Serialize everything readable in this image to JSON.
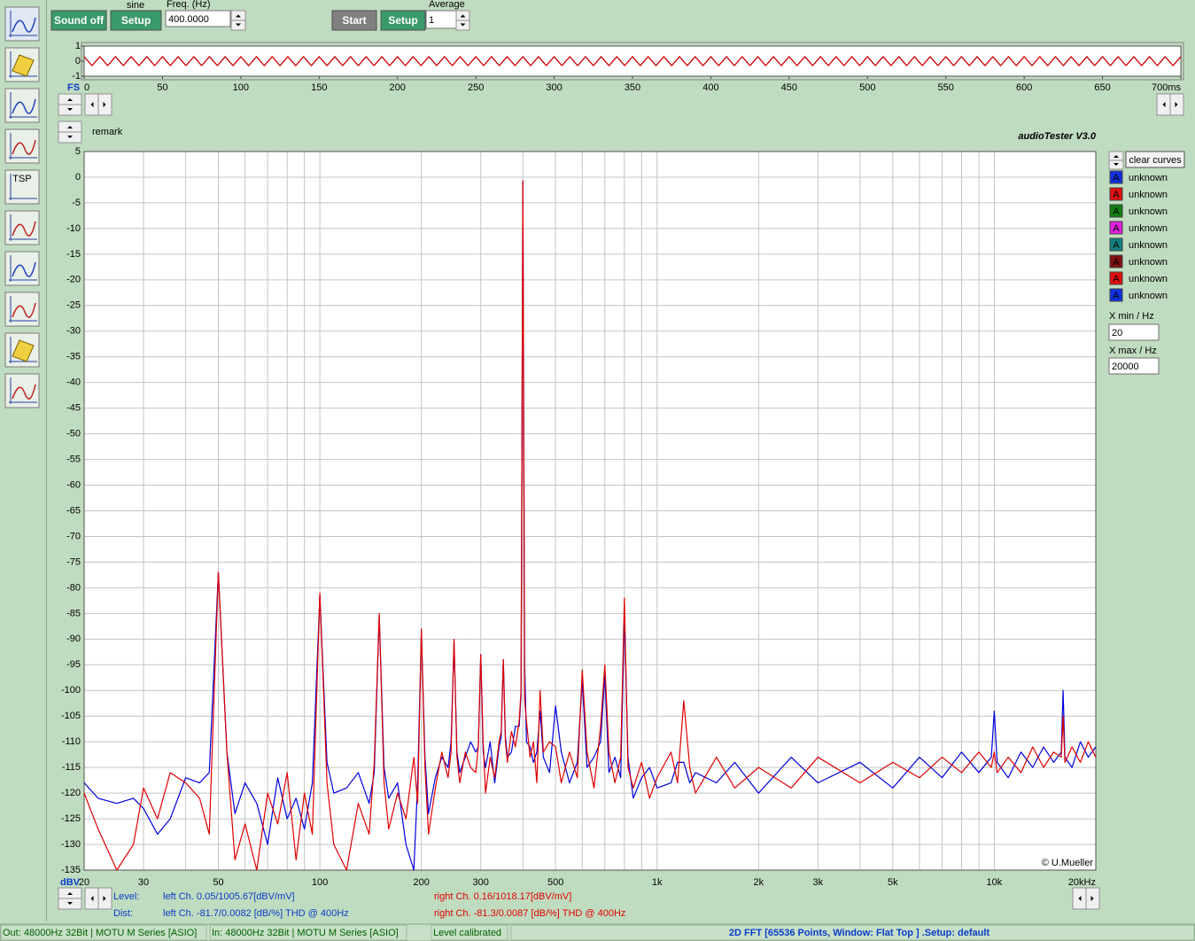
{
  "toolbar": {
    "sound_button": "Sound off",
    "signal_label": "sine",
    "signal_setup": "Setup",
    "freq_label": "Freq. (Hz)",
    "freq_value": "400.0000",
    "start_button": "Start",
    "analyzer_setup": "Setup",
    "average_label": "Average",
    "average_value": "1"
  },
  "tool_icons": {
    "tsp": "TSP"
  },
  "header": {
    "remark": "remark",
    "app_title": "audioTester  V3.0",
    "copyright": "© U.Mueller"
  },
  "curves": {
    "clear_button": "clear curves",
    "icon_letter": "A",
    "items": [
      {
        "label": "unknown",
        "color": "#1030e0"
      },
      {
        "label": "unknown",
        "color": "#e01010"
      },
      {
        "label": "unknown",
        "color": "#108010"
      },
      {
        "label": "unknown",
        "color": "#e020e0"
      },
      {
        "label": "unknown",
        "color": "#108080"
      },
      {
        "label": "unknown",
        "color": "#801010"
      },
      {
        "label": "unknown",
        "color": "#e01010"
      },
      {
        "label": "unknown",
        "color": "#1030e0"
      }
    ]
  },
  "x_range": {
    "min_label": "X min / Hz",
    "min_value": "20",
    "max_label": "X max / Hz",
    "max_value": "20000"
  },
  "readouts": {
    "level_label": "Level:",
    "dist_label": "Dist:",
    "level_left": "left Ch. 0.05/1005.67[dBV/mV]",
    "level_right": "right Ch. 0.16/1018.17[dBV/mV]",
    "dist_left": "left Ch. -81.7/0.0082 [dB/%] THD @ 400Hz",
    "dist_right": "right Ch. -81.3/0.0087 [dB/%] THD @ 400Hz"
  },
  "status_bar": [
    "Out: 48000Hz 32Bit  | MOTU M Series [ASIO]",
    "In: 48000Hz 32Bit  | MOTU M Series [ASIO]",
    "Level calibrated",
    "2D FFT [65536 Points, Window: Flat Top ]  .Setup:  default"
  ],
  "chart_data": [
    {
      "type": "line",
      "ylabel": "FS",
      "x": [
        0,
        5,
        10,
        15,
        20,
        25,
        30,
        35,
        40,
        45,
        50,
        55,
        60,
        65,
        70,
        75,
        80,
        85,
        90,
        95,
        100,
        105,
        110,
        115,
        120,
        125,
        130,
        135,
        140,
        145,
        150,
        155,
        160,
        165,
        170,
        175,
        180,
        185,
        190,
        195,
        200,
        205,
        210,
        215,
        220,
        225,
        230,
        235,
        240,
        245,
        250,
        255,
        260,
        265,
        270,
        275,
        280,
        285,
        290,
        295,
        300,
        305,
        310,
        315,
        320,
        325,
        330,
        335,
        340,
        345,
        350,
        355,
        360,
        365,
        370,
        375,
        380,
        385,
        390,
        395,
        400,
        405,
        410,
        415,
        420,
        425,
        430,
        435,
        440,
        445,
        450,
        455,
        460,
        465,
        470,
        475,
        480,
        485,
        490,
        495,
        500,
        505,
        510,
        515,
        520,
        525,
        530,
        535,
        540,
        545,
        550,
        555,
        560,
        565,
        570,
        575,
        580,
        585,
        590,
        595,
        600,
        605,
        610,
        615,
        620,
        625,
        630,
        635,
        640,
        645,
        650,
        655,
        660,
        665,
        670,
        675,
        680,
        685,
        690,
        695,
        700
      ],
      "series": [
        {
          "color": "#cc0000",
          "values": [
            0.3,
            -0.3,
            0.3,
            -0.3,
            0.3,
            -0.3,
            0.3,
            -0.3,
            0.3,
            -0.3,
            0.3,
            -0.3,
            0.3,
            -0.3,
            0.3,
            -0.3,
            0.3,
            -0.3,
            0.3,
            -0.3,
            0.3,
            -0.3,
            0.3,
            -0.3,
            0.3,
            -0.3,
            0.3,
            -0.3,
            0.3,
            -0.3,
            0.3,
            -0.3,
            0.3,
            -0.3,
            0.3,
            -0.3,
            0.3,
            -0.3,
            0.3,
            -0.3,
            0.3,
            -0.3,
            0.3,
            -0.3,
            0.3,
            -0.3,
            0.3,
            -0.3,
            0.3,
            -0.3,
            0.3,
            -0.3,
            0.3,
            -0.3,
            0.3,
            -0.3,
            0.3,
            -0.3,
            0.3,
            -0.3,
            0.3,
            -0.3,
            0.3,
            -0.3,
            0.3,
            -0.3,
            0.3,
            -0.3,
            0.3,
            -0.3,
            0.3,
            -0.3,
            0.3,
            -0.3,
            0.3,
            -0.3,
            0.3,
            -0.3,
            0.3,
            -0.3,
            0.3,
            -0.3,
            0.3,
            -0.3,
            0.3,
            -0.3,
            0.3,
            -0.3,
            0.3,
            -0.3,
            0.3,
            -0.3,
            0.3,
            -0.3,
            0.3,
            -0.3,
            0.3,
            -0.3,
            0.3,
            -0.3,
            0.3,
            -0.3,
            0.3,
            -0.3,
            0.3,
            -0.3,
            0.3,
            -0.3,
            0.3,
            -0.3,
            0.3,
            -0.3,
            0.3,
            -0.3,
            0.3,
            -0.3,
            0.3,
            -0.3,
            0.3,
            -0.3,
            0.3,
            -0.3,
            0.3,
            -0.3,
            0.3,
            -0.3,
            0.3,
            -0.3,
            0.3,
            -0.3,
            0.3,
            -0.3,
            0.3,
            -0.3,
            0.3,
            -0.3,
            0.3,
            -0.3,
            0.3,
            -0.3,
            0.3
          ]
        }
      ],
      "xlim": [
        0,
        700
      ],
      "ylim": [
        -1,
        1
      ],
      "xticks": [
        0,
        50,
        100,
        150,
        200,
        250,
        300,
        350,
        400,
        450,
        500,
        550,
        600,
        650,
        {
          "value": 700,
          "label": "700ms"
        }
      ],
      "yticks": [
        1,
        0,
        -1
      ],
      "grid": false
    },
    {
      "type": "line",
      "ylabel": "dBV",
      "log_x": true,
      "x": [
        20,
        22,
        25,
        28,
        30,
        33,
        36,
        40,
        44,
        47,
        50,
        53,
        56,
        60,
        65,
        70,
        75,
        80,
        85,
        90,
        95,
        100,
        105,
        110,
        120,
        130,
        140,
        145,
        150,
        155,
        160,
        170,
        180,
        190,
        195,
        200,
        205,
        210,
        220,
        230,
        240,
        245,
        250,
        255,
        260,
        270,
        280,
        290,
        295,
        300,
        305,
        310,
        320,
        330,
        340,
        345,
        350,
        355,
        360,
        370,
        380,
        390,
        395,
        400,
        405,
        410,
        420,
        430,
        440,
        450,
        460,
        480,
        500,
        520,
        550,
        580,
        600,
        620,
        650,
        680,
        700,
        720,
        750,
        780,
        800,
        820,
        850,
        900,
        950,
        1000,
        1100,
        1150,
        1200,
        1250,
        1300,
        1500,
        1700,
        2000,
        2500,
        3000,
        4000,
        5000,
        6000,
        7000,
        8000,
        9000,
        9800,
        10000,
        10200,
        11000,
        12000,
        13000,
        14000,
        15000,
        15800,
        16000,
        16200,
        17000,
        18000,
        19000,
        20000
      ],
      "series": [
        {
          "color": "#0000dd",
          "values": [
            -118,
            -121,
            -122,
            -121,
            -123,
            -128,
            -125,
            -117,
            -118,
            -116,
            -77,
            -112,
            -124,
            -118,
            -122,
            -130,
            -117,
            -125,
            -121,
            -127,
            -118,
            -81.5,
            -114,
            -120,
            -119,
            -116,
            -122,
            -116,
            -85.5,
            -115,
            -121,
            -118,
            -130,
            -135,
            -118,
            -88.5,
            -113,
            -124,
            -117,
            -113,
            -115,
            -110,
            -90.5,
            -112,
            -116,
            -113,
            -110,
            -112,
            -111,
            -93,
            -112,
            -115,
            -110,
            -118,
            -111,
            -109,
            -94,
            -109,
            -113,
            -112,
            -107,
            -107,
            -101,
            -1,
            -95,
            -110,
            -111,
            -114,
            -112,
            -104,
            -113,
            -116,
            -103,
            -112,
            -118,
            -114,
            -98,
            -115,
            -113,
            -110,
            -97,
            -116,
            -113,
            -117,
            -85,
            -113,
            -121,
            -117,
            -115,
            -119,
            -118,
            -114,
            -114,
            -118,
            -116,
            -118,
            -114,
            -120,
            -113,
            -118,
            -114,
            -119,
            -113,
            -117,
            -112,
            -116,
            -113,
            -104,
            -114,
            -117,
            -112,
            -115,
            -111,
            -114,
            -112,
            -100,
            -113,
            -115,
            -110,
            -113,
            -111
          ]
        },
        {
          "color": "#e00000",
          "values": [
            -120,
            -127,
            -135,
            -130,
            -119,
            -125,
            -116,
            -118,
            -121,
            -128,
            -77,
            -112,
            -133,
            -126,
            -135,
            -120,
            -126,
            -116,
            -133,
            -120,
            -128,
            -81,
            -118,
            -130,
            -135,
            -122,
            -128,
            -114,
            -85,
            -118,
            -127,
            -120,
            -125,
            -113,
            -122,
            -88,
            -115,
            -128,
            -119,
            -112,
            -117,
            -112,
            -90,
            -113,
            -118,
            -112,
            -115,
            -116,
            -111,
            -93,
            -110,
            -120,
            -113,
            -117,
            -110,
            -108,
            -94,
            -110,
            -114,
            -108,
            -111,
            -106,
            -100,
            -0.7,
            -102,
            -106,
            -113,
            -110,
            -118,
            -100,
            -112,
            -110,
            -111,
            -118,
            -112,
            -117,
            -96,
            -112,
            -119,
            -107,
            -95,
            -112,
            -118,
            -113,
            -82,
            -115,
            -119,
            -114,
            -121,
            -117,
            -112,
            -118,
            -102,
            -115,
            -120,
            -113,
            -119,
            -115,
            -119,
            -113,
            -118,
            -114,
            -117,
            -113,
            -116,
            -112,
            -115,
            -112,
            -116,
            -113,
            -116,
            -111,
            -115,
            -112,
            -113,
            -105,
            -114,
            -111,
            -114,
            -110,
            -113
          ]
        }
      ],
      "xlim": [
        20,
        20000
      ],
      "ylim": [
        -135,
        5
      ],
      "xticks": [
        20,
        30,
        50,
        100,
        200,
        300,
        500,
        {
          "value": 1000,
          "label": "1k"
        },
        {
          "value": 2000,
          "label": "2k"
        },
        {
          "value": 3000,
          "label": "3k"
        },
        {
          "value": 5000,
          "label": "5k"
        },
        {
          "value": 10000,
          "label": "10k"
        },
        {
          "value": 20000,
          "label": "20kHz"
        }
      ],
      "xminor_ticks": [
        40,
        60,
        70,
        80,
        90,
        400,
        600,
        700,
        800,
        900,
        4000,
        6000,
        7000,
        8000,
        9000
      ],
      "yticks": [
        5,
        0,
        -5,
        -10,
        -15,
        -20,
        -25,
        -30,
        -35,
        -40,
        -45,
        -50,
        -55,
        -60,
        -65,
        -70,
        -75,
        -80,
        -85,
        -90,
        -95,
        -100,
        -105,
        -110,
        -115,
        -120,
        -125,
        -130,
        -135
      ],
      "grid": true
    }
  ]
}
